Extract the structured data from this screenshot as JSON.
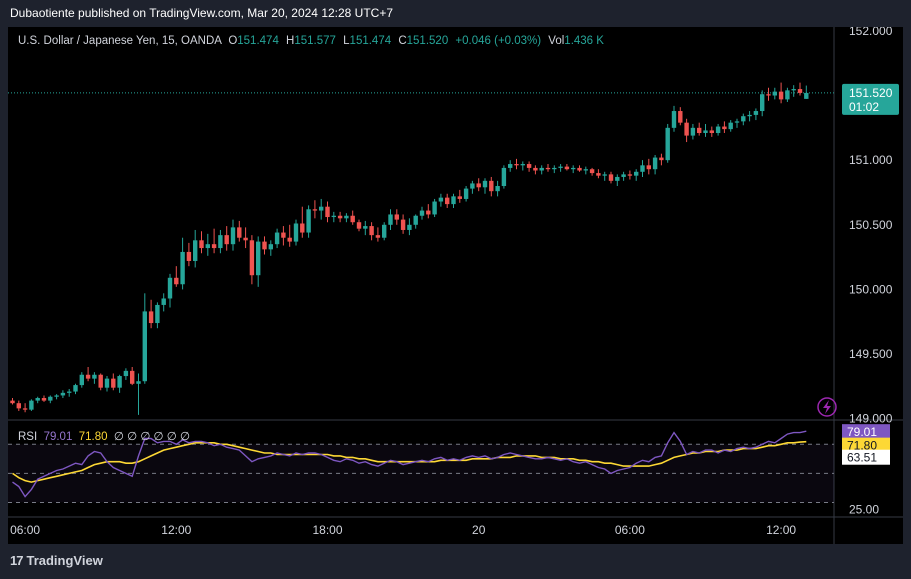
{
  "header": {
    "published": "Dubaotiente published on TradingView.com, Mar 20, 2024 12:28 UTC+7"
  },
  "legend": {
    "symbol": "U.S. Dollar / Japanese Yen, 15, OANDA",
    "o_label": "O",
    "o": "151.474",
    "h_label": "H",
    "h": "151.577",
    "l_label": "L",
    "l": "151.474",
    "c_label": "C",
    "c": "151.520",
    "change": "+0.046 (+0.03%)",
    "vol_label": "Vol",
    "vol": "1.436 K"
  },
  "price_tag": {
    "value": "151.520",
    "countdown": "01:02"
  },
  "rsi": {
    "label": "RSI",
    "value": "79.01",
    "ma": "71.80",
    "placeholders": "∅ ∅ ∅ ∅ ∅ ∅",
    "ma_tag": "71.80",
    "tag_6351": "63.51"
  },
  "colors": {
    "up": "#26a69a",
    "down": "#ef5350",
    "rsi": "#7e57c2",
    "rsi_ma": "#fdd835",
    "bg": "#000000"
  },
  "footer": {
    "logo": "TradingView",
    "logo_icon": "tv-logo-icon"
  },
  "chart_data": [
    {
      "type": "candlestick",
      "title": "",
      "y_ticks": [
        "152.000",
        "151.500",
        "151.000",
        "150.500",
        "150.000",
        "149.500",
        "149.000"
      ],
      "ylim": [
        148.99,
        152.03
      ],
      "x_tick_labels": [
        "06:00",
        "12:00",
        "18:00",
        "20",
        "06:00",
        "12:00"
      ],
      "x_tick_index": [
        2,
        26,
        50,
        74,
        98,
        122
      ],
      "last_price": 151.52,
      "candles": [
        [
          149.14,
          149.16,
          149.11,
          149.12
        ],
        [
          149.12,
          149.14,
          149.06,
          149.08
        ],
        [
          149.08,
          149.12,
          149.05,
          149.07
        ],
        [
          149.07,
          149.15,
          149.06,
          149.14
        ],
        [
          149.14,
          149.17,
          149.12,
          149.16
        ],
        [
          149.16,
          149.18,
          149.13,
          149.14
        ],
        [
          149.14,
          149.18,
          149.12,
          149.17
        ],
        [
          149.17,
          149.19,
          149.15,
          149.18
        ],
        [
          149.18,
          149.22,
          149.16,
          149.2
        ],
        [
          149.2,
          149.23,
          149.17,
          149.21
        ],
        [
          149.21,
          149.27,
          149.19,
          149.26
        ],
        [
          149.26,
          149.36,
          149.24,
          149.34
        ],
        [
          149.34,
          149.4,
          149.29,
          149.31
        ],
        [
          149.31,
          149.36,
          149.27,
          149.34
        ],
        [
          149.34,
          149.35,
          149.22,
          149.24
        ],
        [
          149.24,
          149.33,
          149.21,
          149.31
        ],
        [
          149.31,
          149.35,
          149.22,
          149.24
        ],
        [
          149.24,
          149.34,
          149.2,
          149.33
        ],
        [
          149.33,
          149.39,
          149.3,
          149.37
        ],
        [
          149.37,
          149.4,
          149.26,
          149.27
        ],
        [
          149.27,
          149.35,
          149.03,
          149.29
        ],
        [
          149.29,
          149.97,
          149.27,
          149.83
        ],
        [
          149.83,
          149.92,
          149.7,
          149.74
        ],
        [
          149.74,
          149.9,
          149.7,
          149.88
        ],
        [
          149.88,
          149.97,
          149.83,
          149.93
        ],
        [
          149.93,
          150.12,
          149.86,
          150.09
        ],
        [
          150.09,
          150.18,
          150.02,
          150.04
        ],
        [
          150.04,
          150.4,
          150.0,
          150.29
        ],
        [
          150.29,
          150.36,
          150.18,
          150.22
        ],
        [
          150.22,
          150.46,
          150.17,
          150.38
        ],
        [
          150.38,
          150.45,
          150.28,
          150.32
        ],
        [
          150.32,
          150.43,
          150.26,
          150.35
        ],
        [
          150.35,
          150.47,
          150.28,
          150.32
        ],
        [
          150.32,
          150.46,
          150.28,
          150.42
        ],
        [
          150.42,
          150.49,
          150.3,
          150.35
        ],
        [
          150.35,
          150.54,
          150.3,
          150.48
        ],
        [
          150.48,
          150.53,
          150.37,
          150.4
        ],
        [
          150.4,
          150.48,
          150.32,
          150.38
        ],
        [
          150.38,
          150.42,
          150.04,
          150.11
        ],
        [
          150.11,
          150.41,
          150.02,
          150.37
        ],
        [
          150.37,
          150.41,
          150.27,
          150.31
        ],
        [
          150.31,
          150.38,
          150.26,
          150.35
        ],
        [
          150.35,
          150.47,
          150.32,
          150.44
        ],
        [
          150.44,
          150.49,
          150.34,
          150.4
        ],
        [
          150.4,
          150.5,
          150.33,
          150.37
        ],
        [
          150.37,
          150.54,
          150.34,
          150.51
        ],
        [
          150.51,
          150.64,
          150.4,
          150.44
        ],
        [
          150.44,
          150.65,
          150.4,
          150.62
        ],
        [
          150.62,
          150.69,
          150.55,
          150.61
        ],
        [
          150.61,
          150.7,
          150.54,
          150.64
        ],
        [
          150.64,
          150.68,
          150.52,
          150.56
        ],
        [
          150.56,
          150.6,
          150.52,
          150.57
        ],
        [
          150.57,
          150.6,
          150.52,
          150.55
        ],
        [
          150.55,
          150.59,
          150.52,
          150.57
        ],
        [
          150.57,
          150.61,
          150.5,
          150.52
        ],
        [
          150.52,
          150.54,
          150.45,
          150.47
        ],
        [
          150.47,
          150.53,
          150.42,
          150.49
        ],
        [
          150.49,
          150.52,
          150.38,
          150.42
        ],
        [
          150.42,
          150.48,
          150.37,
          150.4
        ],
        [
          150.4,
          150.52,
          150.38,
          150.5
        ],
        [
          150.5,
          150.62,
          150.46,
          150.58
        ],
        [
          150.58,
          150.62,
          150.5,
          150.54
        ],
        [
          150.54,
          150.58,
          150.43,
          150.46
        ],
        [
          150.46,
          150.55,
          150.42,
          150.5
        ],
        [
          150.5,
          150.58,
          150.47,
          150.57
        ],
        [
          150.57,
          150.64,
          150.54,
          150.61
        ],
        [
          150.61,
          150.66,
          150.55,
          150.58
        ],
        [
          150.58,
          150.7,
          150.56,
          150.68
        ],
        [
          150.68,
          150.74,
          150.64,
          150.71
        ],
        [
          150.71,
          150.74,
          150.63,
          150.66
        ],
        [
          150.66,
          150.74,
          150.63,
          150.72
        ],
        [
          150.72,
          150.77,
          150.67,
          150.7
        ],
        [
          150.7,
          150.8,
          150.68,
          150.78
        ],
        [
          150.78,
          150.84,
          150.74,
          150.82
        ],
        [
          150.82,
          150.86,
          150.76,
          150.79
        ],
        [
          150.79,
          150.86,
          150.74,
          150.84
        ],
        [
          150.84,
          150.87,
          150.72,
          150.76
        ],
        [
          150.76,
          150.84,
          150.72,
          150.8
        ],
        [
          150.8,
          150.96,
          150.78,
          150.94
        ],
        [
          150.94,
          151.0,
          150.91,
          150.97
        ],
        [
          150.97,
          151.01,
          150.93,
          150.96
        ],
        [
          150.96,
          150.99,
          150.92,
          150.97
        ],
        [
          150.97,
          150.99,
          150.91,
          150.94
        ],
        [
          150.94,
          150.96,
          150.89,
          150.92
        ],
        [
          150.92,
          150.96,
          150.89,
          150.94
        ],
        [
          150.94,
          150.97,
          150.91,
          150.93
        ],
        [
          150.93,
          150.96,
          150.9,
          150.94
        ],
        [
          150.94,
          150.97,
          150.91,
          150.95
        ],
        [
          150.95,
          150.97,
          150.92,
          150.93
        ],
        [
          150.93,
          150.96,
          150.9,
          150.94
        ],
        [
          150.94,
          150.96,
          150.91,
          150.92
        ],
        [
          150.92,
          150.95,
          150.89,
          150.93
        ],
        [
          150.93,
          150.94,
          150.88,
          150.9
        ],
        [
          150.9,
          150.93,
          150.86,
          150.88
        ],
        [
          150.88,
          150.91,
          150.84,
          150.89
        ],
        [
          150.89,
          150.91,
          150.82,
          150.84
        ],
        [
          150.84,
          150.89,
          150.8,
          150.87
        ],
        [
          150.87,
          150.91,
          150.84,
          150.89
        ],
        [
          150.89,
          150.92,
          150.85,
          150.88
        ],
        [
          150.88,
          150.93,
          150.84,
          150.91
        ],
        [
          150.91,
          151.0,
          150.87,
          150.96
        ],
        [
          150.96,
          151.01,
          150.89,
          150.93
        ],
        [
          150.93,
          151.04,
          150.89,
          151.02
        ],
        [
          151.02,
          151.05,
          150.96,
          151.0
        ],
        [
          151.0,
          151.28,
          150.98,
          151.25
        ],
        [
          151.25,
          151.42,
          151.22,
          151.38
        ],
        [
          151.38,
          151.41,
          151.27,
          151.29
        ],
        [
          151.29,
          151.32,
          151.14,
          151.19
        ],
        [
          151.19,
          151.28,
          151.16,
          151.25
        ],
        [
          151.25,
          151.29,
          151.19,
          151.21
        ],
        [
          151.21,
          151.28,
          151.18,
          151.23
        ],
        [
          151.23,
          151.26,
          151.18,
          151.21
        ],
        [
          151.21,
          151.28,
          151.19,
          151.26
        ],
        [
          151.26,
          151.3,
          151.21,
          151.24
        ],
        [
          151.24,
          151.31,
          151.22,
          151.29
        ],
        [
          151.29,
          151.32,
          151.25,
          151.3
        ],
        [
          151.3,
          151.36,
          151.27,
          151.34
        ],
        [
          151.34,
          151.38,
          151.3,
          151.35
        ],
        [
          151.35,
          151.4,
          151.31,
          151.38
        ],
        [
          151.38,
          151.54,
          151.34,
          151.51
        ],
        [
          151.51,
          151.56,
          151.46,
          151.5
        ],
        [
          151.5,
          151.56,
          151.47,
          151.53
        ],
        [
          151.53,
          151.6,
          151.44,
          151.47
        ],
        [
          151.47,
          151.56,
          151.45,
          151.54
        ],
        [
          151.54,
          151.58,
          151.49,
          151.55
        ],
        [
          151.55,
          151.6,
          151.5,
          151.52
        ],
        [
          151.474,
          151.577,
          151.474,
          151.52
        ]
      ]
    },
    {
      "type": "line",
      "title": "RSI",
      "y_ticks": [
        "25.00"
      ],
      "ylim": [
        20,
        86
      ],
      "levels": [
        70,
        50,
        30
      ],
      "series": [
        {
          "name": "RSI",
          "values": [
            44,
            41,
            34,
            39,
            46,
            48,
            50,
            52,
            53,
            55,
            57,
            56,
            62,
            65,
            64,
            58,
            54,
            52,
            50,
            48,
            62,
            74,
            74,
            71,
            72,
            72,
            70,
            73,
            71,
            72,
            72,
            71,
            69,
            70,
            68,
            67,
            66,
            62,
            58,
            60,
            61,
            62,
            64,
            63,
            62,
            64,
            63,
            64,
            64,
            63,
            61,
            59,
            58,
            60,
            59,
            57,
            58,
            56,
            55,
            57,
            59,
            58,
            56,
            57,
            58,
            59,
            58,
            60,
            61,
            59,
            60,
            59,
            61,
            62,
            61,
            62,
            60,
            61,
            63,
            64,
            63,
            62,
            61,
            60,
            60,
            61,
            60,
            59,
            60,
            58,
            57,
            58,
            56,
            54,
            53,
            50,
            52,
            53,
            54,
            57,
            59,
            58,
            61,
            62,
            71,
            78,
            72,
            63,
            65,
            64,
            66,
            66,
            64,
            66,
            65,
            67,
            68,
            67,
            68,
            70,
            72,
            71,
            74,
            77,
            78,
            78,
            79.01
          ]
        },
        {
          "name": "RSI MA",
          "values": [
            50,
            47,
            45,
            44,
            45,
            46,
            47,
            48,
            49,
            50,
            51,
            52,
            54,
            56,
            57,
            58,
            58,
            58,
            57,
            57,
            58,
            60,
            62,
            64,
            66,
            67,
            68,
            69,
            70,
            71,
            71,
            71,
            71,
            70,
            70,
            69,
            68,
            67,
            66,
            65,
            64,
            64,
            63,
            63,
            63,
            63,
            63,
            63,
            63,
            63,
            63,
            62,
            62,
            61,
            61,
            60,
            60,
            59,
            58,
            58,
            58,
            58,
            58,
            58,
            58,
            58,
            58,
            58,
            59,
            59,
            59,
            59,
            59,
            60,
            60,
            60,
            60,
            61,
            61,
            61,
            62,
            62,
            62,
            62,
            61,
            61,
            61,
            60,
            60,
            60,
            59,
            59,
            58,
            58,
            57,
            57,
            56,
            55,
            55,
            55,
            55,
            55,
            56,
            57,
            59,
            61,
            62,
            63,
            64,
            64,
            65,
            65,
            65,
            66,
            66,
            66,
            67,
            67,
            67,
            68,
            69,
            69,
            70,
            71,
            71,
            71.5,
            71.8
          ]
        }
      ]
    }
  ]
}
